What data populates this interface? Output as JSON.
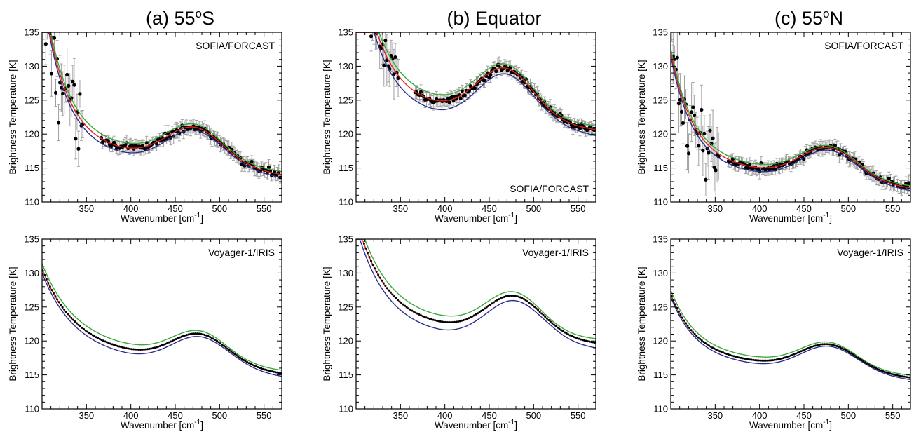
{
  "figure": {
    "columns": [
      {
        "title": "(a) 55",
        "title_sup": "o",
        "title_tail": "S"
      },
      {
        "title": "(b) Equator",
        "title_sup": "",
        "title_tail": ""
      },
      {
        "title": "(c) 55",
        "title_sup": "o",
        "title_tail": "N"
      }
    ]
  },
  "colors": {
    "green": "#3aa83a",
    "red": "#e0201e",
    "blue": "#2b2e8e",
    "data": "#000000",
    "errorbar": "#a0a0a0"
  },
  "chart_data": [
    {
      "type": "line",
      "panel": "(a) 55oS",
      "instrument": "SOFIA/FORCAST",
      "xlabel": "Wavenumber [cm-1]",
      "ylabel": "Brightness Temperature [K]",
      "xlim": [
        300,
        570
      ],
      "ylim": [
        110,
        135
      ],
      "xticks": [
        350,
        400,
        450,
        500,
        550
      ],
      "yticks": [
        110,
        115,
        120,
        125,
        130,
        135
      ],
      "params": {
        "a": 116.2,
        "b": 23,
        "L": 25,
        "A": 5.2,
        "c": 472,
        "w": 45,
        "S": 2.2
      },
      "model_offsets": {
        "green": 0.7,
        "red": 0,
        "blue": -0.7
      },
      "scatter": {
        "low_x": [
          300,
          320
        ],
        "low_amp": 5.8,
        "mid_x": [
          320,
          345
        ],
        "mid_amp": 3.8,
        "gap": [
          346,
          366
        ],
        "err_hi": 1.5,
        "err_lo": 0.9
      }
    },
    {
      "type": "line",
      "panel": "(b) Equator",
      "instrument": "SOFIA/FORCAST",
      "xlabel": "Wavenumber [cm-1]",
      "ylabel": "Brightness Temperature [K]",
      "xlim": [
        300,
        570
      ],
      "ylim": [
        110,
        135
      ],
      "xticks": [
        350,
        400,
        450,
        500,
        550
      ],
      "yticks": [
        110,
        115,
        120,
        125,
        130,
        135
      ],
      "params": {
        "a": 122.7,
        "b": 24,
        "L": 27,
        "A": 7.3,
        "c": 468,
        "w": 45,
        "S": 2.1
      },
      "model_offsets": {
        "green": 0.9,
        "red": 0,
        "blue": -1.3
      },
      "scatter": {
        "low_x": [
          300,
          325
        ],
        "low_amp": 3.2,
        "mid_x": [
          325,
          345
        ],
        "mid_amp": 2.6,
        "gap": [
          348,
          366
        ],
        "err_hi": 1.4,
        "err_lo": 0.9
      }
    },
    {
      "type": "line",
      "panel": "(c) 55oN",
      "instrument": "SOFIA/FORCAST",
      "xlabel": "Wavenumber [cm-1]",
      "ylabel": "Brightness Temperature [K]",
      "xlim": [
        300,
        570
      ],
      "ylim": [
        110,
        135
      ],
      "xticks": [
        350,
        400,
        450,
        500,
        550
      ],
      "yticks": [
        110,
        115,
        120,
        125,
        130,
        135
      ],
      "params": {
        "a": 113.8,
        "b": 16,
        "L": 25,
        "A": 4.6,
        "c": 478,
        "w": 45,
        "S": 1.8
      },
      "model_offsets": {
        "green": 0.5,
        "red": 0,
        "blue": -0.6
      },
      "scatter": {
        "low_x": [
          300,
          320
        ],
        "low_amp": 3.8,
        "mid_x": [
          320,
          352
        ],
        "mid_amp": 3.8,
        "gap": [
          354,
          364
        ],
        "err_hi": 1.6,
        "err_lo": 0.9
      }
    },
    {
      "type": "line",
      "panel": "(a) 55oS",
      "instrument": "Voyager-1/IRIS",
      "xlabel": "Wavenumber [cm-1]",
      "ylabel": "Brightness Temperature [K]",
      "xlim": [
        300,
        570
      ],
      "ylim": [
        110,
        135
      ],
      "xticks": [
        350,
        400,
        450,
        500,
        550
      ],
      "yticks": [
        110,
        115,
        120,
        125,
        130,
        135
      ],
      "params": {
        "a": 117.1,
        "b": 11,
        "L": 35,
        "A": 4.3,
        "c": 478,
        "w": 45,
        "S": 2.0
      },
      "model_offsets": {
        "green": 0.8,
        "red": 0,
        "blue": -0.6
      }
    },
    {
      "type": "line",
      "panel": "(b) Equator",
      "instrument": "Voyager-1/IRIS",
      "xlabel": "Wavenumber [cm-1]",
      "ylabel": "Brightness Temperature [K]",
      "xlim": [
        300,
        570
      ],
      "ylim": [
        110,
        135
      ],
      "xticks": [
        350,
        400,
        450,
        500,
        550
      ],
      "yticks": [
        110,
        115,
        120,
        125,
        130,
        135
      ],
      "params": {
        "a": 121.1,
        "b": 15,
        "L": 33,
        "A": 5.8,
        "c": 478,
        "w": 45,
        "S": 1.5
      },
      "model_offsets": {
        "green": 1.0,
        "red": 0,
        "blue": -1.1
      }
    },
    {
      "type": "line",
      "panel": "(c) 55oN",
      "instrument": "Voyager-1/IRIS",
      "xlabel": "Wavenumber [cm-1]",
      "ylabel": "Brightness Temperature [K]",
      "xlim": [
        300,
        570
      ],
      "ylim": [
        110,
        135
      ],
      "xticks": [
        350,
        400,
        450,
        500,
        550
      ],
      "yticks": [
        110,
        115,
        120,
        125,
        130,
        135
      ],
      "params": {
        "a": 116.0,
        "b": 9,
        "L": 28,
        "A": 3.8,
        "c": 478,
        "w": 45,
        "S": 1.5
      },
      "model_offsets": {
        "green": 0.6,
        "red": 0,
        "blue": -0.4
      }
    }
  ],
  "annotations": {
    "extra_b_top": "SOFIA/FORCAST"
  }
}
